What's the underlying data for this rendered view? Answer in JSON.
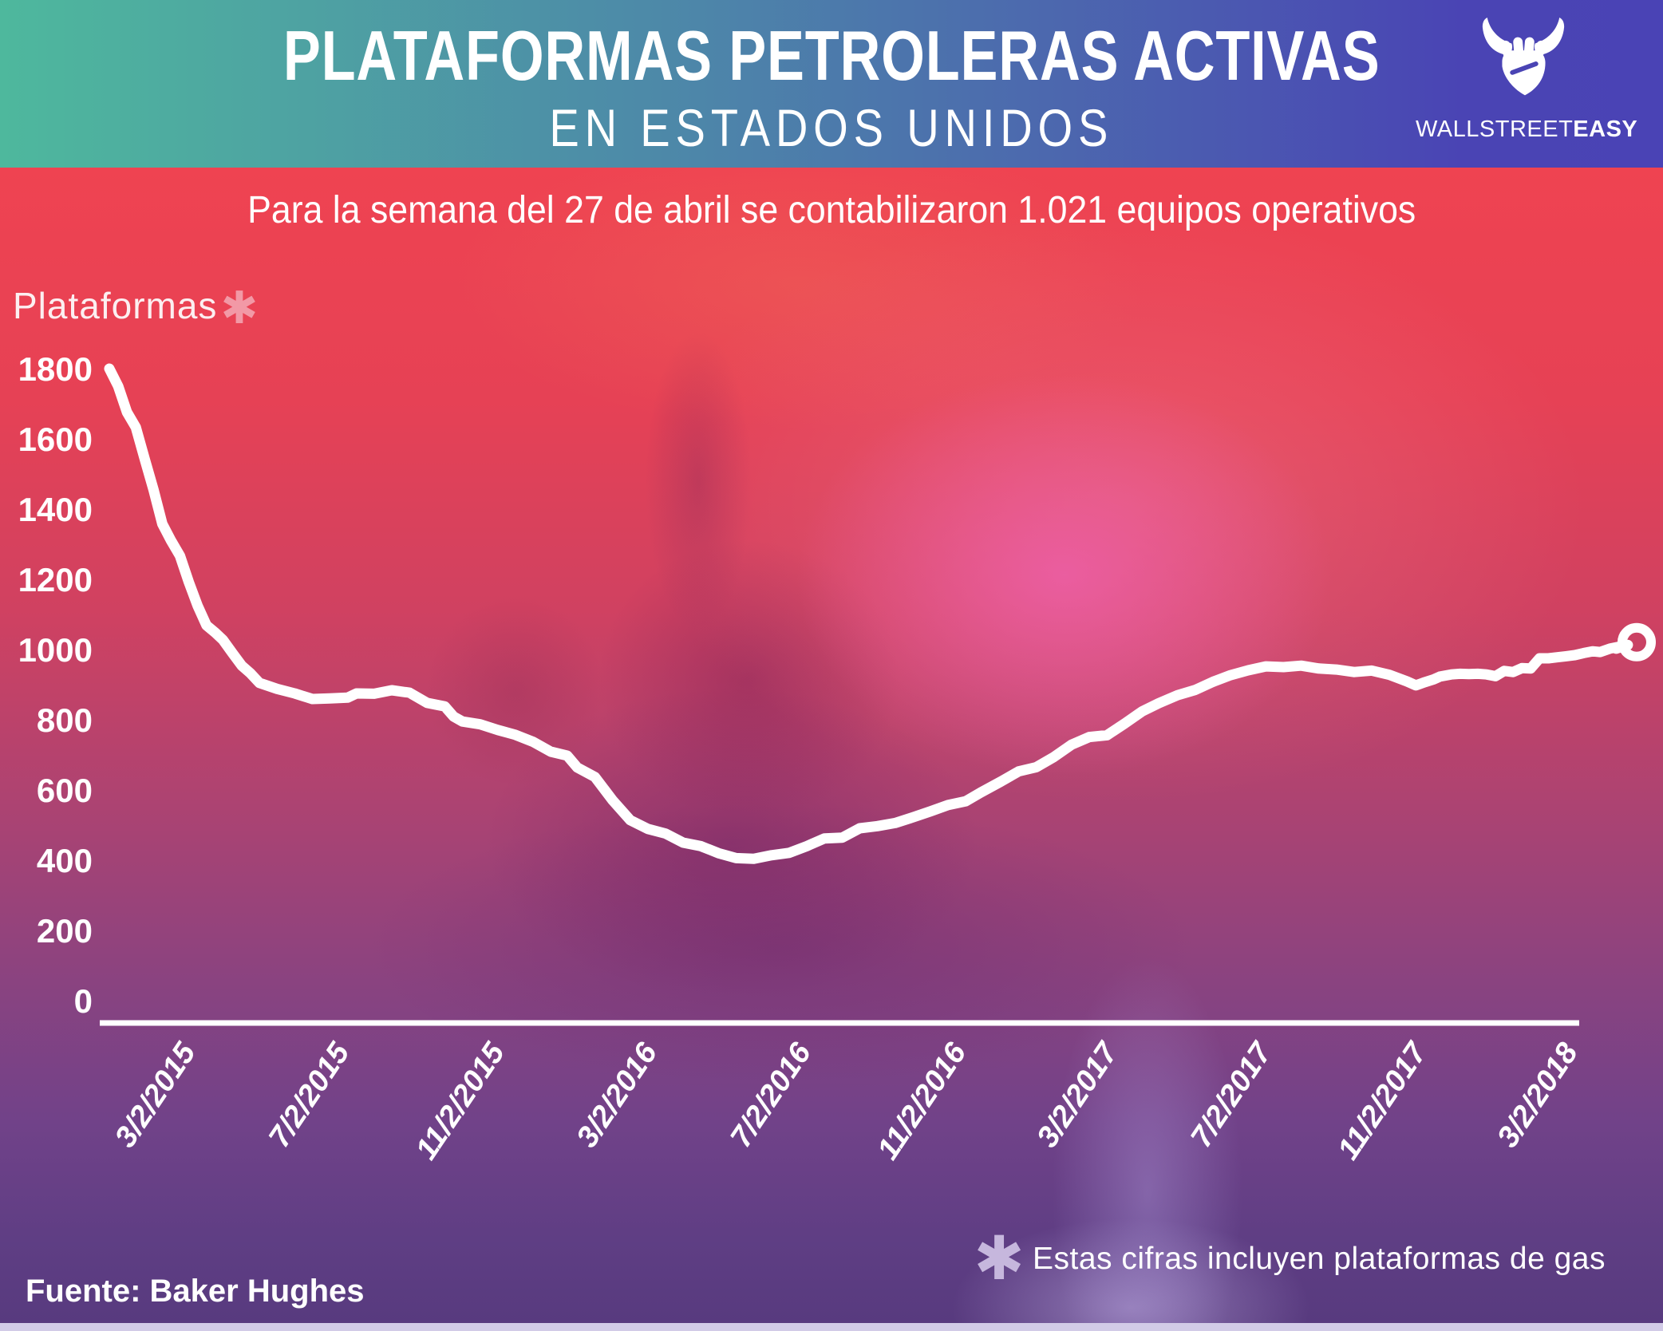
{
  "header": {
    "title": "PLATAFORMAS PETROLERAS ACTIVAS",
    "subtitle": "EN ESTADOS UNIDOS",
    "brand": {
      "name_light": "WALLSTREET",
      "name_bold": "EASY"
    }
  },
  "lead": "Para la semana del 27 de abril se contabilizaron 1.021 equipos operativos",
  "footer": {
    "source": "Fuente: Baker Hughes",
    "note_marker": "✱",
    "note": "Estas cifras incluyen plataformas de gas"
  },
  "colors": {
    "header_gradient_left": "#4eb89d",
    "header_gradient_right": "#4a44b4",
    "background_top": "#ef4351",
    "background_bottom": "#573a7e",
    "line": "#ffffff",
    "asterisk_pink": "#f299a6",
    "asterisk_lavender": "#c6b7dd",
    "bottom_strip": "#d2cbe7"
  },
  "chart_data": {
    "type": "line",
    "title": "Plataformas petroleras activas en Estados Unidos",
    "ylabel": "Plataformas",
    "ylabel_marker": "✱",
    "xlabel": "",
    "ylim": [
      0,
      1800
    ],
    "y_ticks": [
      1800,
      1600,
      1400,
      1200,
      1000,
      800,
      600,
      400,
      200,
      0
    ],
    "x_tick_labels": [
      "3/2/2015",
      "7/2/2015",
      "11/2/2015",
      "3/2/2016",
      "7/2/2016",
      "11/2/2016",
      "3/2/2017",
      "7/2/2017",
      "11/2/2017",
      "3/2/2018"
    ],
    "grid": false,
    "legend": false,
    "line_color": "#ffffff",
    "end_marker": "open-circle",
    "last_point": {
      "date": "2018-04-27",
      "value": 1021
    },
    "series": [
      {
        "name": "Plataformas activas (incluye plataformas de gas)",
        "points": [
          [
            "2015-01-02",
            1800
          ],
          [
            "2015-01-09",
            1750
          ],
          [
            "2015-01-16",
            1676
          ],
          [
            "2015-01-23",
            1633
          ],
          [
            "2015-01-30",
            1543
          ],
          [
            "2015-02-06",
            1456
          ],
          [
            "2015-02-13",
            1358
          ],
          [
            "2015-02-20",
            1310
          ],
          [
            "2015-02-27",
            1267
          ],
          [
            "2015-03-06",
            1192
          ],
          [
            "2015-03-13",
            1125
          ],
          [
            "2015-03-20",
            1069
          ],
          [
            "2015-03-27",
            1048
          ],
          [
            "2015-04-02",
            1028
          ],
          [
            "2015-04-10",
            988
          ],
          [
            "2015-04-17",
            954
          ],
          [
            "2015-04-24",
            932
          ],
          [
            "2015-05-01",
            905
          ],
          [
            "2015-05-15",
            888
          ],
          [
            "2015-05-29",
            875
          ],
          [
            "2015-06-12",
            859
          ],
          [
            "2015-06-26",
            861
          ],
          [
            "2015-07-10",
            863
          ],
          [
            "2015-07-17",
            875
          ],
          [
            "2015-07-31",
            874
          ],
          [
            "2015-08-14",
            884
          ],
          [
            "2015-08-28",
            877
          ],
          [
            "2015-09-11",
            848
          ],
          [
            "2015-09-25",
            838
          ],
          [
            "2015-10-02",
            809
          ],
          [
            "2015-10-09",
            795
          ],
          [
            "2015-10-23",
            787
          ],
          [
            "2015-11-06",
            771
          ],
          [
            "2015-11-20",
            757
          ],
          [
            "2015-12-04",
            737
          ],
          [
            "2015-12-18",
            709
          ],
          [
            "2015-12-31",
            698
          ],
          [
            "2016-01-08",
            664
          ],
          [
            "2016-01-22",
            637
          ],
          [
            "2016-02-05",
            571
          ],
          [
            "2016-02-19",
            514
          ],
          [
            "2016-03-04",
            489
          ],
          [
            "2016-03-18",
            476
          ],
          [
            "2016-04-01",
            450
          ],
          [
            "2016-04-15",
            440
          ],
          [
            "2016-04-29",
            420
          ],
          [
            "2016-05-13",
            406
          ],
          [
            "2016-05-27",
            404
          ],
          [
            "2016-06-10",
            414
          ],
          [
            "2016-06-24",
            421
          ],
          [
            "2016-07-08",
            440
          ],
          [
            "2016-07-22",
            462
          ],
          [
            "2016-08-05",
            464
          ],
          [
            "2016-08-19",
            491
          ],
          [
            "2016-09-02",
            497
          ],
          [
            "2016-09-16",
            506
          ],
          [
            "2016-09-30",
            522
          ],
          [
            "2016-10-14",
            539
          ],
          [
            "2016-10-28",
            557
          ],
          [
            "2016-11-11",
            568
          ],
          [
            "2016-11-23",
            593
          ],
          [
            "2016-12-09",
            624
          ],
          [
            "2016-12-23",
            653
          ],
          [
            "2017-01-06",
            665
          ],
          [
            "2017-01-20",
            694
          ],
          [
            "2017-02-03",
            729
          ],
          [
            "2017-02-17",
            751
          ],
          [
            "2017-03-03",
            756
          ],
          [
            "2017-03-17",
            789
          ],
          [
            "2017-03-31",
            824
          ],
          [
            "2017-04-13",
            847
          ],
          [
            "2017-04-28",
            870
          ],
          [
            "2017-05-12",
            885
          ],
          [
            "2017-05-26",
            908
          ],
          [
            "2017-06-09",
            927
          ],
          [
            "2017-06-23",
            941
          ],
          [
            "2017-07-07",
            952
          ],
          [
            "2017-07-21",
            950
          ],
          [
            "2017-08-04",
            954
          ],
          [
            "2017-08-18",
            946
          ],
          [
            "2017-09-01",
            943
          ],
          [
            "2017-09-15",
            936
          ],
          [
            "2017-09-29",
            940
          ],
          [
            "2017-10-13",
            928
          ],
          [
            "2017-10-27",
            909
          ],
          [
            "2017-11-03",
            898
          ],
          [
            "2017-11-10",
            907
          ],
          [
            "2017-11-17",
            915
          ],
          [
            "2017-11-22",
            923
          ],
          [
            "2017-12-01",
            929
          ],
          [
            "2017-12-08",
            931
          ],
          [
            "2017-12-15",
            930
          ],
          [
            "2017-12-22",
            931
          ],
          [
            "2017-12-29",
            929
          ],
          [
            "2018-01-05",
            924
          ],
          [
            "2018-01-12",
            939
          ],
          [
            "2018-01-19",
            936
          ],
          [
            "2018-01-26",
            947
          ],
          [
            "2018-02-02",
            946
          ],
          [
            "2018-02-09",
            975
          ],
          [
            "2018-02-16",
            975
          ],
          [
            "2018-02-23",
            978
          ],
          [
            "2018-03-02",
            981
          ],
          [
            "2018-03-09",
            984
          ],
          [
            "2018-03-16",
            990
          ],
          [
            "2018-03-23",
            995
          ],
          [
            "2018-03-29",
            993
          ],
          [
            "2018-04-06",
            1003
          ],
          [
            "2018-04-13",
            1008
          ],
          [
            "2018-04-20",
            1013
          ],
          [
            "2018-04-27",
            1021
          ]
        ]
      }
    ]
  }
}
